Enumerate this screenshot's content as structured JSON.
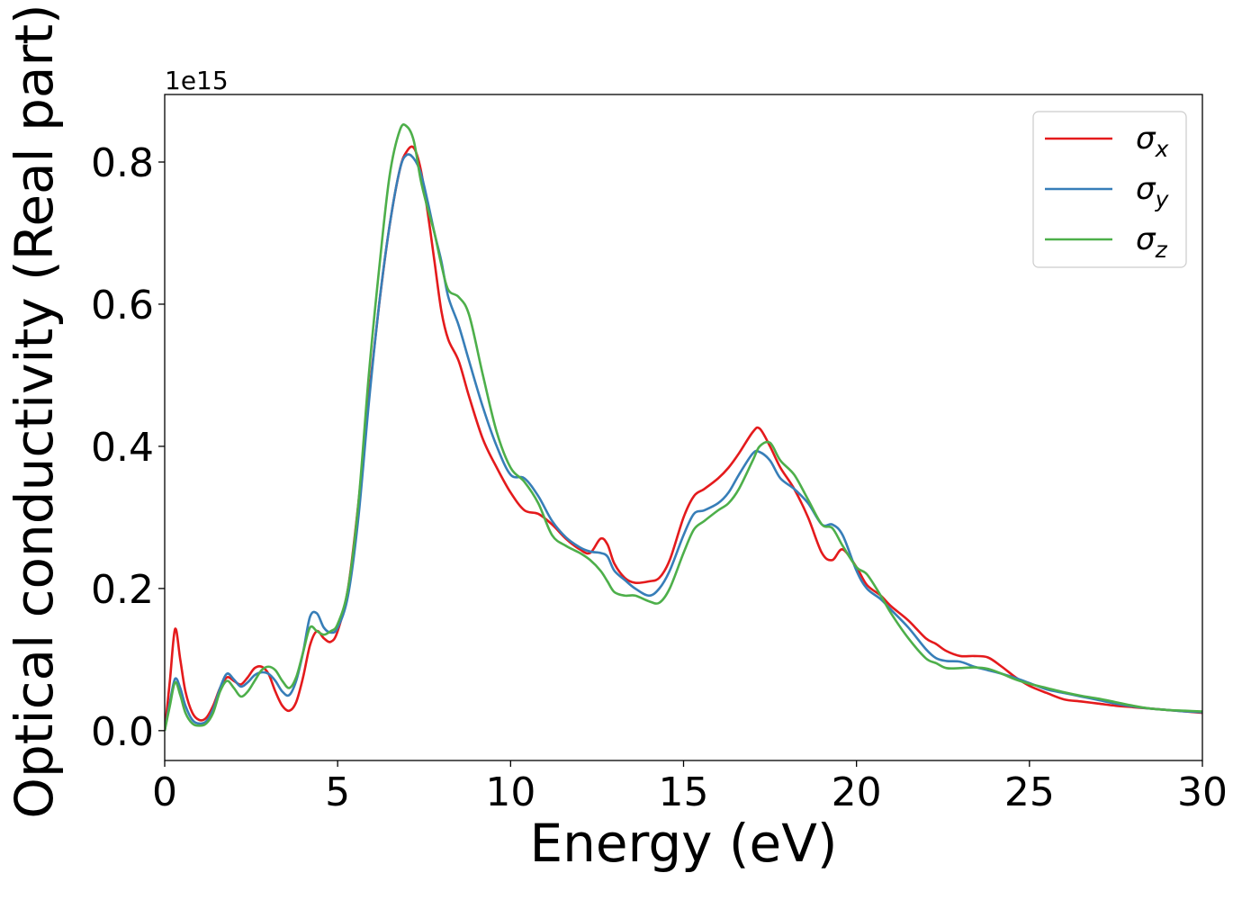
{
  "chart_data": {
    "type": "line",
    "title": "",
    "xlabel": "Energy (eV)",
    "ylabel": "Optical conductivity (Real part)",
    "y_offset_label": "1e15",
    "xlim": [
      0,
      30
    ],
    "ylim": [
      -0.042,
      0.895
    ],
    "xticks": [
      0,
      5,
      10,
      15,
      20,
      25,
      30
    ],
    "xtick_labels": [
      "0",
      "5",
      "10",
      "15",
      "20",
      "25",
      "30"
    ],
    "yticks": [
      0.0,
      0.2,
      0.4,
      0.6,
      0.8
    ],
    "ytick_labels": [
      "0.0",
      "0.2",
      "0.4",
      "0.6",
      "0.8"
    ],
    "grid": false,
    "legend_position": "top-right",
    "series": [
      {
        "name": "σ",
        "subscript": "x",
        "color": "#e41a1c",
        "x": [
          0,
          0.15,
          0.3,
          0.45,
          0.6,
          0.8,
          1.0,
          1.2,
          1.4,
          1.6,
          1.8,
          2.0,
          2.2,
          2.4,
          2.6,
          2.8,
          3.0,
          3.2,
          3.4,
          3.6,
          3.8,
          4.0,
          4.2,
          4.4,
          4.6,
          4.8,
          5.0,
          5.3,
          5.6,
          5.9,
          6.2,
          6.5,
          6.8,
          7.0,
          7.2,
          7.4,
          7.6,
          7.8,
          8.0,
          8.2,
          8.5,
          8.8,
          9.2,
          9.6,
          10.0,
          10.4,
          10.8,
          11.2,
          11.6,
          12.0,
          12.3,
          12.6,
          12.8,
          13.0,
          13.3,
          13.6,
          14.0,
          14.3,
          14.6,
          15.0,
          15.3,
          15.6,
          16.0,
          16.3,
          16.6,
          17.0,
          17.2,
          17.5,
          17.8,
          18.2,
          18.6,
          19.0,
          19.3,
          19.6,
          20.0,
          20.3,
          20.7,
          21.0,
          21.5,
          22.0,
          22.3,
          22.6,
          23.0,
          23.4,
          23.8,
          24.2,
          24.6,
          25.0,
          25.5,
          26.0,
          26.5,
          27.0,
          27.5,
          28.0,
          28.5,
          29.0,
          29.5,
          30.0
        ],
        "values": [
          0.0,
          0.07,
          0.143,
          0.1,
          0.055,
          0.025,
          0.015,
          0.018,
          0.035,
          0.06,
          0.075,
          0.07,
          0.065,
          0.075,
          0.088,
          0.09,
          0.08,
          0.055,
          0.035,
          0.028,
          0.04,
          0.075,
          0.12,
          0.14,
          0.13,
          0.125,
          0.14,
          0.2,
          0.32,
          0.47,
          0.6,
          0.71,
          0.79,
          0.815,
          0.82,
          0.79,
          0.73,
          0.66,
          0.59,
          0.55,
          0.52,
          0.47,
          0.41,
          0.37,
          0.335,
          0.31,
          0.305,
          0.29,
          0.27,
          0.255,
          0.25,
          0.27,
          0.262,
          0.235,
          0.215,
          0.208,
          0.21,
          0.215,
          0.24,
          0.3,
          0.33,
          0.34,
          0.355,
          0.37,
          0.39,
          0.42,
          0.425,
          0.4,
          0.37,
          0.34,
          0.3,
          0.25,
          0.24,
          0.255,
          0.23,
          0.205,
          0.19,
          0.175,
          0.155,
          0.13,
          0.122,
          0.112,
          0.105,
          0.105,
          0.103,
          0.09,
          0.075,
          0.063,
          0.053,
          0.044,
          0.041,
          0.038,
          0.035,
          0.033,
          0.031,
          0.029,
          0.027,
          0.025
        ]
      },
      {
        "name": "σ",
        "subscript": "y",
        "color": "#377eb8",
        "x": [
          0,
          0.15,
          0.3,
          0.45,
          0.6,
          0.8,
          1.0,
          1.2,
          1.4,
          1.6,
          1.8,
          2.0,
          2.2,
          2.4,
          2.6,
          2.8,
          3.0,
          3.2,
          3.4,
          3.6,
          3.8,
          4.0,
          4.2,
          4.4,
          4.6,
          4.8,
          5.0,
          5.3,
          5.6,
          5.9,
          6.2,
          6.5,
          6.8,
          7.0,
          7.2,
          7.4,
          7.6,
          7.8,
          8.0,
          8.2,
          8.5,
          8.8,
          9.2,
          9.6,
          10.0,
          10.4,
          10.8,
          11.2,
          11.6,
          12.0,
          12.3,
          12.6,
          12.8,
          13.0,
          13.3,
          13.6,
          14.0,
          14.3,
          14.6,
          15.0,
          15.3,
          15.6,
          16.0,
          16.3,
          16.6,
          17.0,
          17.2,
          17.5,
          17.8,
          18.2,
          18.6,
          19.0,
          19.3,
          19.6,
          20.0,
          20.3,
          20.7,
          21.0,
          21.5,
          22.0,
          22.3,
          22.6,
          23.0,
          23.4,
          23.8,
          24.2,
          24.6,
          25.0,
          25.5,
          26.0,
          26.5,
          27.0,
          27.5,
          28.0,
          28.5,
          29.0,
          29.5,
          30.0
        ],
        "values": [
          0.0,
          0.04,
          0.073,
          0.06,
          0.035,
          0.015,
          0.01,
          0.013,
          0.03,
          0.06,
          0.08,
          0.072,
          0.062,
          0.068,
          0.078,
          0.082,
          0.08,
          0.07,
          0.055,
          0.05,
          0.07,
          0.11,
          0.16,
          0.165,
          0.145,
          0.138,
          0.145,
          0.19,
          0.3,
          0.46,
          0.6,
          0.71,
          0.79,
          0.81,
          0.805,
          0.785,
          0.745,
          0.7,
          0.66,
          0.61,
          0.57,
          0.52,
          0.455,
          0.4,
          0.36,
          0.355,
          0.33,
          0.295,
          0.272,
          0.258,
          0.252,
          0.25,
          0.245,
          0.225,
          0.212,
          0.2,
          0.19,
          0.2,
          0.225,
          0.275,
          0.305,
          0.31,
          0.32,
          0.335,
          0.36,
          0.39,
          0.392,
          0.38,
          0.355,
          0.34,
          0.32,
          0.29,
          0.29,
          0.275,
          0.225,
          0.2,
          0.185,
          0.17,
          0.145,
          0.115,
          0.102,
          0.098,
          0.097,
          0.09,
          0.085,
          0.08,
          0.074,
          0.067,
          0.058,
          0.053,
          0.048,
          0.043,
          0.038,
          0.034,
          0.031,
          0.029,
          0.027,
          0.026
        ]
      },
      {
        "name": "σ",
        "subscript": "z",
        "color": "#4daf4a",
        "x": [
          0,
          0.15,
          0.3,
          0.45,
          0.6,
          0.8,
          1.0,
          1.2,
          1.4,
          1.6,
          1.8,
          2.0,
          2.2,
          2.4,
          2.6,
          2.8,
          3.0,
          3.2,
          3.4,
          3.6,
          3.8,
          4.0,
          4.2,
          4.4,
          4.6,
          4.8,
          5.0,
          5.3,
          5.6,
          5.9,
          6.2,
          6.5,
          6.8,
          7.0,
          7.2,
          7.4,
          7.6,
          7.8,
          8.0,
          8.2,
          8.5,
          8.8,
          9.2,
          9.6,
          10.0,
          10.4,
          10.8,
          11.2,
          11.6,
          12.0,
          12.3,
          12.6,
          12.8,
          13.0,
          13.3,
          13.6,
          14.0,
          14.3,
          14.6,
          15.0,
          15.3,
          15.6,
          16.0,
          16.3,
          16.6,
          17.0,
          17.2,
          17.5,
          17.8,
          18.2,
          18.6,
          19.0,
          19.3,
          19.6,
          20.0,
          20.3,
          20.7,
          21.0,
          21.5,
          22.0,
          22.3,
          22.6,
          23.0,
          23.4,
          23.8,
          24.2,
          24.6,
          25.0,
          25.5,
          26.0,
          26.5,
          27.0,
          27.5,
          28.0,
          28.5,
          29.0,
          29.5,
          30.0
        ],
        "values": [
          0.0,
          0.035,
          0.068,
          0.05,
          0.025,
          0.01,
          0.007,
          0.01,
          0.025,
          0.055,
          0.07,
          0.06,
          0.048,
          0.055,
          0.07,
          0.085,
          0.09,
          0.085,
          0.07,
          0.06,
          0.075,
          0.11,
          0.145,
          0.14,
          0.135,
          0.14,
          0.15,
          0.2,
          0.32,
          0.5,
          0.65,
          0.78,
          0.845,
          0.85,
          0.83,
          0.775,
          0.735,
          0.7,
          0.655,
          0.62,
          0.61,
          0.585,
          0.5,
          0.42,
          0.37,
          0.35,
          0.32,
          0.275,
          0.26,
          0.25,
          0.24,
          0.225,
          0.21,
          0.195,
          0.19,
          0.19,
          0.182,
          0.18,
          0.2,
          0.25,
          0.283,
          0.295,
          0.31,
          0.32,
          0.34,
          0.38,
          0.4,
          0.405,
          0.38,
          0.36,
          0.325,
          0.29,
          0.285,
          0.26,
          0.23,
          0.22,
          0.19,
          0.165,
          0.13,
          0.102,
          0.095,
          0.088,
          0.088,
          0.089,
          0.087,
          0.08,
          0.072,
          0.066,
          0.06,
          0.054,
          0.049,
          0.045,
          0.04,
          0.035,
          0.031,
          0.029,
          0.028,
          0.027
        ]
      }
    ]
  }
}
